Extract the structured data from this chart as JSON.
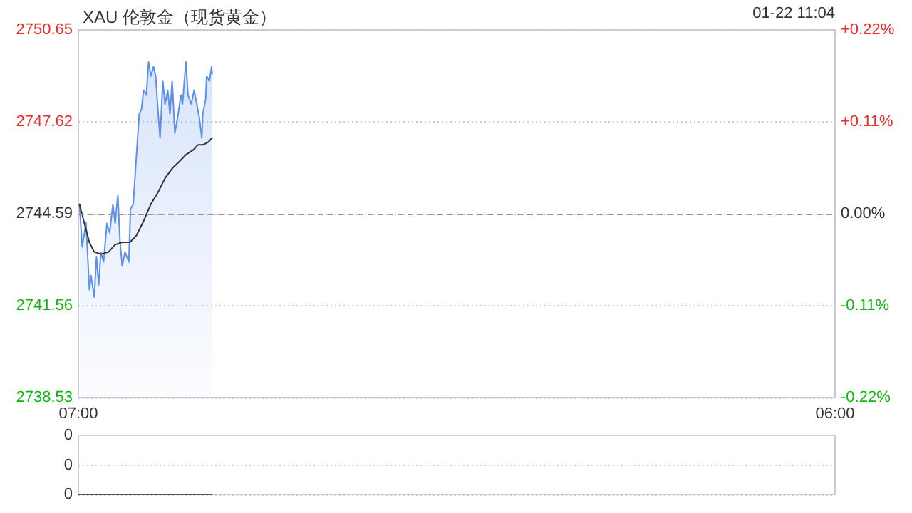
{
  "chart_data": [
    {
      "type": "line",
      "title": "XAU 伦敦金（现货黄金）",
      "annotations": [
        "01-22 11:04"
      ],
      "xlim": [
        "--01-22T07:00",
        "--01-23T06:00"
      ],
      "xticks": [
        {
          "value": "--01-22T07:00",
          "label": "07:00"
        },
        {
          "value": "--01-23T06:00",
          "label": "06:00"
        }
      ],
      "ylim": [
        2738.53,
        2750.65
      ],
      "yticks": [
        2738.53,
        2741.56,
        2744.59,
        2747.62,
        2750.65
      ],
      "y2lim": [
        -0.22,
        0.22
      ],
      "y2ticks": [
        {
          "value": -0.22,
          "label": "-0.22%"
        },
        {
          "value": -0.11,
          "label": "-0.11%"
        },
        {
          "value": 0,
          "label": "0.00%"
        },
        {
          "value": 0.11,
          "label": "+0.11%"
        },
        {
          "value": 0.22,
          "label": "+0.22%"
        }
      ],
      "grid": "y",
      "marker": "none",
      "ref_lines": [
        {
          "axis": "y",
          "value": 2744.59,
          "color": "#999999",
          "line_style": "dashed"
        }
      ],
      "series": [
        {
          "type": "area",
          "color": "#5b8ff0",
          "x": [
            "--01-22T07:02",
            "--01-22T07:07",
            "--01-22T07:14",
            "--01-22T07:20",
            "--01-22T07:23",
            "--01-22T07:29",
            "--01-22T07:33",
            "--01-22T07:37",
            "--01-22T07:41",
            "--01-22T07:46",
            "--01-22T07:52",
            "--01-22T07:57",
            "--01-22T08:03",
            "--01-22T08:07",
            "--01-22T08:12",
            "--01-22T08:16",
            "--01-22T08:20",
            "--01-22T08:25",
            "--01-22T08:32",
            "--01-22T08:35",
            "--01-22T08:40",
            "--01-22T08:44",
            "--01-22T08:51",
            "--01-22T08:55",
            "--01-22T08:59",
            "--01-22T09:04",
            "--01-22T09:08",
            "--01-22T09:12",
            "--01-22T09:17",
            "--01-22T09:21",
            "--01-22T09:25",
            "--01-22T09:29",
            "--01-22T09:34",
            "--01-22T09:38",
            "--01-22T09:43",
            "--01-22T09:47",
            "--01-22T09:51",
            "--01-22T09:56",
            "--01-22T10:02",
            "--01-22T10:07",
            "--01-22T10:10",
            "--01-22T10:16",
            "--01-22T10:20",
            "--01-22T10:26",
            "--01-22T10:31",
            "--01-22T10:36",
            "--01-22T10:41",
            "--01-22T10:45",
            "--01-22T10:47",
            "--01-22T10:52",
            "--01-22T10:54",
            "--01-22T10:59",
            "--01-22T11:03",
            "--01-22T11:04"
          ],
          "values": [
            2744.9,
            2743.5,
            2744.3,
            2742.09,
            2742.55,
            2741.85,
            2743.18,
            2742.24,
            2743.33,
            2743.0,
            2744.27,
            2743.96,
            2744.9,
            2744.27,
            2745.2,
            2743.65,
            2742.87,
            2743.33,
            2743.0,
            2744.74,
            2744.9,
            2746.0,
            2747.88,
            2748.03,
            2748.66,
            2748.5,
            2749.6,
            2749.13,
            2749.44,
            2749.13,
            2748.03,
            2747.09,
            2748.97,
            2748.2,
            2748.66,
            2747.88,
            2748.97,
            2747.25,
            2747.88,
            2748.5,
            2748.2,
            2749.6,
            2748.5,
            2748.2,
            2748.66,
            2748.2,
            2747.72,
            2747.09,
            2747.88,
            2748.35,
            2749.13,
            2748.97,
            2749.44,
            2749.2
          ]
        },
        {
          "type": "line",
          "color": "#333333",
          "x": [
            "--01-22T07:02",
            "--01-22T07:11",
            "--01-22T07:20",
            "--01-22T07:29",
            "--01-22T07:41",
            "--01-22T07:55",
            "--01-22T08:07",
            "--01-22T08:20",
            "--01-22T08:34",
            "--01-22T08:46",
            "--01-22T08:59",
            "--01-22T09:12",
            "--01-22T09:25",
            "--01-22T09:38",
            "--01-22T09:51",
            "--01-22T10:04",
            "--01-22T10:17",
            "--01-22T10:30",
            "--01-22T10:38",
            "--01-22T10:47",
            "--01-22T10:56",
            "--01-22T11:04"
          ],
          "values": [
            2744.9,
            2744.27,
            2743.65,
            2743.33,
            2743.26,
            2743.33,
            2743.57,
            2743.65,
            2743.65,
            2743.88,
            2744.35,
            2744.9,
            2745.29,
            2745.76,
            2746.08,
            2746.31,
            2746.55,
            2746.7,
            2746.86,
            2746.86,
            2746.94,
            2747.09
          ]
        }
      ]
    },
    {
      "type": "line",
      "xlim": [
        "--01-22T07:00",
        "--01-23T06:00"
      ],
      "ylim": [
        0,
        0.4
      ],
      "yticks": [
        {
          "value": 0,
          "label": "0"
        },
        {
          "value": 0.2,
          "label": "0"
        },
        {
          "value": 0.4,
          "label": "0"
        }
      ],
      "grid": "y",
      "marker": "none",
      "tick_labels": "y",
      "series": [
        {
          "color": "#555555",
          "x": [
            "--01-22T07:00",
            "--01-22T11:04"
          ],
          "values": [
            0,
            0
          ]
        }
      ]
    }
  ]
}
